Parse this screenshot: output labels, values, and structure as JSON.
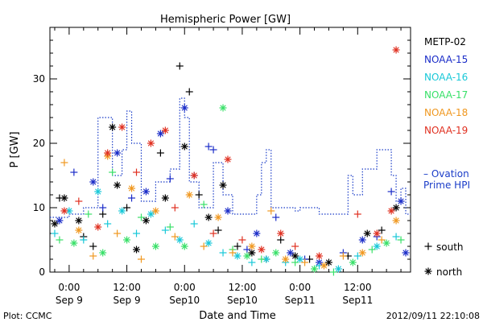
{
  "chart_data": {
    "type": "scatter",
    "title": "Hemispheric Power [GW]",
    "ylabel": "P [GW]",
    "xlabel": "Date and Time",
    "xlim": [
      "2012-09-08 20:00",
      "2012-09-11 23:00"
    ],
    "ylim": [
      0,
      38
    ],
    "y_ticks": [
      0,
      10,
      20,
      30
    ],
    "x_ticks": [
      {
        "t": "2012-09-09 00:00",
        "line1": "0:00",
        "line2": "Sep 9"
      },
      {
        "t": "2012-09-09 12:00",
        "line1": "12:00",
        "line2": "Sep 9"
      },
      {
        "t": "2012-09-10 00:00",
        "line1": "0:00",
        "line2": "Sep10"
      },
      {
        "t": "2012-09-10 12:00",
        "line1": "12:00",
        "line2": "Sep10"
      },
      {
        "t": "2012-09-11 00:00",
        "line1": "0:00",
        "line2": "Sep11"
      },
      {
        "t": "2012-09-11 12:00",
        "line1": "12:00",
        "line2": "Sep11"
      }
    ],
    "markers": [
      {
        "symbol": "+",
        "label": "south"
      },
      {
        "symbol": "*",
        "label": "north"
      }
    ],
    "series": [
      {
        "name": "METP-02",
        "color": "#000000",
        "points": [
          [
            "2012-09-08 21:00",
            7.5,
            "*"
          ],
          [
            "2012-09-08 22:00",
            11.5,
            "+"
          ],
          [
            "2012-09-08 23:00",
            11.5,
            "*"
          ],
          [
            "2012-09-09 02:00",
            8,
            "*"
          ],
          [
            "2012-09-09 03:00",
            5.5,
            "+"
          ],
          [
            "2012-09-09 05:00",
            4,
            "+"
          ],
          [
            "2012-09-09 07:00",
            9,
            "+"
          ],
          [
            "2012-09-09 09:00",
            22.5,
            "*"
          ],
          [
            "2012-09-09 10:00",
            13.5,
            "*"
          ],
          [
            "2012-09-09 12:00",
            10,
            "+"
          ],
          [
            "2012-09-09 14:00",
            3.5,
            "*"
          ],
          [
            "2012-09-09 16:00",
            8,
            "*"
          ],
          [
            "2012-09-09 19:00",
            18.5,
            "+"
          ],
          [
            "2012-09-09 20:00",
            11.5,
            "*"
          ],
          [
            "2012-09-09 23:00",
            32,
            "+"
          ],
          [
            "2012-09-10 01:00",
            28,
            "+"
          ],
          [
            "2012-09-10 00:00",
            19.5,
            "*"
          ],
          [
            "2012-09-10 03:00",
            12,
            "+"
          ],
          [
            "2012-09-10 05:00",
            8.5,
            "*"
          ],
          [
            "2012-09-10 07:00",
            6.5,
            "+"
          ],
          [
            "2012-09-10 08:00",
            13.5,
            "*"
          ],
          [
            "2012-09-10 11:00",
            4,
            "+"
          ],
          [
            "2012-09-10 14:00",
            3,
            "*"
          ],
          [
            "2012-09-10 17:00",
            2,
            "+"
          ],
          [
            "2012-09-10 20:00",
            5,
            "+"
          ],
          [
            "2012-09-10 23:00",
            2.5,
            "*"
          ],
          [
            "2012-09-11 02:00",
            2,
            "+"
          ],
          [
            "2012-09-11 06:00",
            1.5,
            "*"
          ],
          [
            "2012-09-11 10:00",
            2.5,
            "+"
          ],
          [
            "2012-09-11 14:00",
            6,
            "*"
          ],
          [
            "2012-09-11 17:00",
            6.5,
            "+"
          ],
          [
            "2012-09-11 20:00",
            10,
            "*"
          ]
        ]
      },
      {
        "name": "NOAA-15",
        "color": "#1a2cc8",
        "points": [
          [
            "2012-09-08 22:00",
            8,
            "*"
          ],
          [
            "2012-09-09 01:00",
            15.5,
            "+"
          ],
          [
            "2012-09-09 05:00",
            14,
            "*"
          ],
          [
            "2012-09-09 07:00",
            10,
            "+"
          ],
          [
            "2012-09-09 10:00",
            18.5,
            "*"
          ],
          [
            "2012-09-09 13:00",
            11.5,
            "+"
          ],
          [
            "2012-09-09 16:00",
            12.5,
            "*"
          ],
          [
            "2012-09-09 19:00",
            21.5,
            "*"
          ],
          [
            "2012-09-09 21:00",
            14.5,
            "+"
          ],
          [
            "2012-09-10 00:00",
            25.5,
            "*"
          ],
          [
            "2012-09-10 02:00",
            15,
            "+"
          ],
          [
            "2012-09-10 05:00",
            19.5,
            "+"
          ],
          [
            "2012-09-10 06:00",
            19,
            "+"
          ],
          [
            "2012-09-10 09:00",
            9.5,
            "*"
          ],
          [
            "2012-09-10 13:00",
            3.5,
            "+"
          ],
          [
            "2012-09-10 15:00",
            6,
            "*"
          ],
          [
            "2012-09-10 19:00",
            8.5,
            "+"
          ],
          [
            "2012-09-10 22:00",
            3,
            "*"
          ],
          [
            "2012-09-11 01:00",
            2,
            "+"
          ],
          [
            "2012-09-11 04:00",
            1.5,
            "*"
          ],
          [
            "2012-09-11 09:00",
            3,
            "+"
          ],
          [
            "2012-09-11 13:00",
            5,
            "*"
          ],
          [
            "2012-09-11 16:00",
            5.5,
            "+"
          ],
          [
            "2012-09-11 19:00",
            12.5,
            "+"
          ],
          [
            "2012-09-11 21:00",
            11,
            "*"
          ],
          [
            "2012-09-11 22:00",
            3,
            "*"
          ]
        ]
      },
      {
        "name": "NOAA-16",
        "color": "#18c8d8",
        "points": [
          [
            "2012-09-08 21:00",
            6,
            "+"
          ],
          [
            "2012-09-09 00:00",
            9.5,
            "*"
          ],
          [
            "2012-09-09 03:00",
            5,
            "+"
          ],
          [
            "2012-09-09 06:00",
            12.5,
            "*"
          ],
          [
            "2012-09-09 08:00",
            7.5,
            "+"
          ],
          [
            "2012-09-09 11:00",
            9.5,
            "*"
          ],
          [
            "2012-09-09 14:00",
            6,
            "+"
          ],
          [
            "2012-09-09 17:00",
            9,
            "*"
          ],
          [
            "2012-09-09 20:00",
            6.5,
            "+"
          ],
          [
            "2012-09-09 23:00",
            5,
            "*"
          ],
          [
            "2012-09-10 02:00",
            7.5,
            "+"
          ],
          [
            "2012-09-10 05:00",
            4.5,
            "*"
          ],
          [
            "2012-09-10 08:00",
            3,
            "+"
          ],
          [
            "2012-09-10 11:00",
            2.5,
            "*"
          ],
          [
            "2012-09-10 14:00",
            1.5,
            "+"
          ],
          [
            "2012-09-10 17:00",
            2,
            "*"
          ],
          [
            "2012-09-10 21:00",
            1.5,
            "+"
          ],
          [
            "2012-09-11 00:00",
            2,
            "*"
          ],
          [
            "2012-09-11 04:00",
            1,
            "+"
          ],
          [
            "2012-09-11 08:00",
            0.5,
            "*"
          ],
          [
            "2012-09-11 12:00",
            2.5,
            "+"
          ],
          [
            "2012-09-11 16:00",
            4,
            "*"
          ],
          [
            "2012-09-11 20:00",
            5.5,
            "+"
          ]
        ]
      },
      {
        "name": "NOAA-17",
        "color": "#38e068",
        "points": [
          [
            "2012-09-08 22:00",
            5,
            "+"
          ],
          [
            "2012-09-09 01:00",
            4.5,
            "*"
          ],
          [
            "2012-09-09 04:00",
            9,
            "+"
          ],
          [
            "2012-09-09 07:00",
            3,
            "*"
          ],
          [
            "2012-09-09 09:00",
            15.5,
            "+"
          ],
          [
            "2012-09-09 12:00",
            5,
            "*"
          ],
          [
            "2012-09-09 15:00",
            8.5,
            "+"
          ],
          [
            "2012-09-09 18:00",
            4,
            "*"
          ],
          [
            "2012-09-09 21:00",
            7,
            "+"
          ],
          [
            "2012-09-10 00:00",
            4,
            "*"
          ],
          [
            "2012-09-10 04:00",
            10.5,
            "+"
          ],
          [
            "2012-09-10 08:00",
            25.5,
            "*"
          ],
          [
            "2012-09-10 10:00",
            3.5,
            "+"
          ],
          [
            "2012-09-10 13:00",
            2.5,
            "*"
          ],
          [
            "2012-09-10 16:00",
            2,
            "+"
          ],
          [
            "2012-09-10 19:00",
            3,
            "*"
          ],
          [
            "2012-09-10 23:00",
            1.5,
            "+"
          ],
          [
            "2012-09-11 03:00",
            0.5,
            "*"
          ],
          [
            "2012-09-11 07:00",
            0,
            "+"
          ],
          [
            "2012-09-11 11:00",
            1.5,
            "*"
          ],
          [
            "2012-09-11 15:00",
            3.5,
            "+"
          ],
          [
            "2012-09-11 18:00",
            4.5,
            "*"
          ],
          [
            "2012-09-11 21:00",
            5,
            "+"
          ]
        ]
      },
      {
        "name": "NOAA-18",
        "color": "#f09820",
        "points": [
          [
            "2012-09-08 23:00",
            17,
            "+"
          ],
          [
            "2012-09-09 02:00",
            6.5,
            "*"
          ],
          [
            "2012-09-09 05:00",
            2.5,
            "+"
          ],
          [
            "2012-09-09 08:00",
            18,
            "*"
          ],
          [
            "2012-09-09 10:00",
            6,
            "+"
          ],
          [
            "2012-09-09 13:00",
            13,
            "*"
          ],
          [
            "2012-09-09 15:00",
            2,
            "+"
          ],
          [
            "2012-09-09 18:00",
            9.5,
            "*"
          ],
          [
            "2012-09-09 22:00",
            5.5,
            "+"
          ],
          [
            "2012-09-10 01:00",
            12,
            "*"
          ],
          [
            "2012-09-10 04:00",
            4,
            "+"
          ],
          [
            "2012-09-10 07:00",
            8.5,
            "*"
          ],
          [
            "2012-09-10 10:00",
            3,
            "+"
          ],
          [
            "2012-09-10 14:00",
            4,
            "*"
          ],
          [
            "2012-09-10 18:00",
            9.5,
            "+"
          ],
          [
            "2012-09-10 21:00",
            2,
            "*"
          ],
          [
            "2012-09-11 01:00",
            1.5,
            "+"
          ],
          [
            "2012-09-11 05:00",
            1,
            "*"
          ],
          [
            "2012-09-11 09:00",
            2.5,
            "+"
          ],
          [
            "2012-09-11 13:00",
            3,
            "*"
          ],
          [
            "2012-09-11 17:00",
            5,
            "+"
          ],
          [
            "2012-09-11 20:00",
            8,
            "*"
          ]
        ]
      },
      {
        "name": "NOAA-19",
        "color": "#e03020",
        "points": [
          [
            "2012-09-08 23:00",
            9.5,
            "*"
          ],
          [
            "2012-09-09 02:00",
            11,
            "+"
          ],
          [
            "2012-09-09 06:00",
            7,
            "*"
          ],
          [
            "2012-09-09 08:00",
            18.5,
            "*"
          ],
          [
            "2012-09-09 11:00",
            22.5,
            "*"
          ],
          [
            "2012-09-09 14:00",
            15.5,
            "+"
          ],
          [
            "2012-09-09 17:00",
            20,
            "*"
          ],
          [
            "2012-09-09 20:00",
            22,
            "*"
          ],
          [
            "2012-09-09 22:00",
            10,
            "+"
          ],
          [
            "2012-09-10 02:00",
            15,
            "*"
          ],
          [
            "2012-09-10 06:00",
            6,
            "+"
          ],
          [
            "2012-09-10 09:00",
            17.5,
            "*"
          ],
          [
            "2012-09-10 12:00",
            5,
            "+"
          ],
          [
            "2012-09-10 16:00",
            3.5,
            "*"
          ],
          [
            "2012-09-10 20:00",
            6,
            "*"
          ],
          [
            "2012-09-10 23:00",
            4,
            "+"
          ],
          [
            "2012-09-11 04:00",
            2.5,
            "*"
          ],
          [
            "2012-09-11 12:00",
            9,
            "+"
          ],
          [
            "2012-09-11 16:00",
            6,
            "*"
          ],
          [
            "2012-09-11 19:00",
            9.5,
            "*"
          ],
          [
            "2012-09-11 20:00",
            34.5,
            "*"
          ]
        ]
      }
    ],
    "ovation": {
      "name": "Ovation Prime HPI",
      "color": "#1a3cc8",
      "steps": [
        [
          "2012-09-08 20:00",
          8.5
        ],
        [
          "2012-09-09 00:00",
          9
        ],
        [
          "2012-09-09 03:00",
          10
        ],
        [
          "2012-09-09 06:00",
          24
        ],
        [
          "2012-09-09 09:00",
          15
        ],
        [
          "2012-09-09 11:00",
          19
        ],
        [
          "2012-09-09 12:00",
          25
        ],
        [
          "2012-09-09 13:00",
          20
        ],
        [
          "2012-09-09 15:00",
          11
        ],
        [
          "2012-09-09 18:00",
          14
        ],
        [
          "2012-09-09 21:00",
          16
        ],
        [
          "2012-09-09 23:00",
          27
        ],
        [
          "2012-09-10 00:00",
          24
        ],
        [
          "2012-09-10 01:00",
          14
        ],
        [
          "2012-09-10 03:00",
          10
        ],
        [
          "2012-09-10 06:00",
          17
        ],
        [
          "2012-09-10 08:00",
          12
        ],
        [
          "2012-09-10 10:00",
          9
        ],
        [
          "2012-09-10 15:00",
          12
        ],
        [
          "2012-09-10 16:00",
          17
        ],
        [
          "2012-09-10 17:00",
          19
        ],
        [
          "2012-09-10 18:00",
          10
        ],
        [
          "2012-09-10 23:00",
          9.5
        ],
        [
          "2012-09-11 00:00",
          10
        ],
        [
          "2012-09-11 04:00",
          9
        ],
        [
          "2012-09-11 08:00",
          9
        ],
        [
          "2012-09-11 10:00",
          15
        ],
        [
          "2012-09-11 11:00",
          12
        ],
        [
          "2012-09-11 13:00",
          16
        ],
        [
          "2012-09-11 16:00",
          19
        ],
        [
          "2012-09-11 19:00",
          15
        ],
        [
          "2012-09-11 20:00",
          11
        ],
        [
          "2012-09-11 21:00",
          13
        ],
        [
          "2012-09-11 22:00",
          9
        ],
        [
          "2012-09-11 23:00",
          9
        ]
      ]
    },
    "legend_position": "right"
  },
  "legend": {
    "ovation_line1": "– Ovation",
    "ovation_line2": "Prime HPI",
    "south_label": "south",
    "north_label": "north"
  },
  "footer": {
    "plot_label": "Plot: CCMC",
    "timestamp": "2012/09/11 22:10:08"
  }
}
